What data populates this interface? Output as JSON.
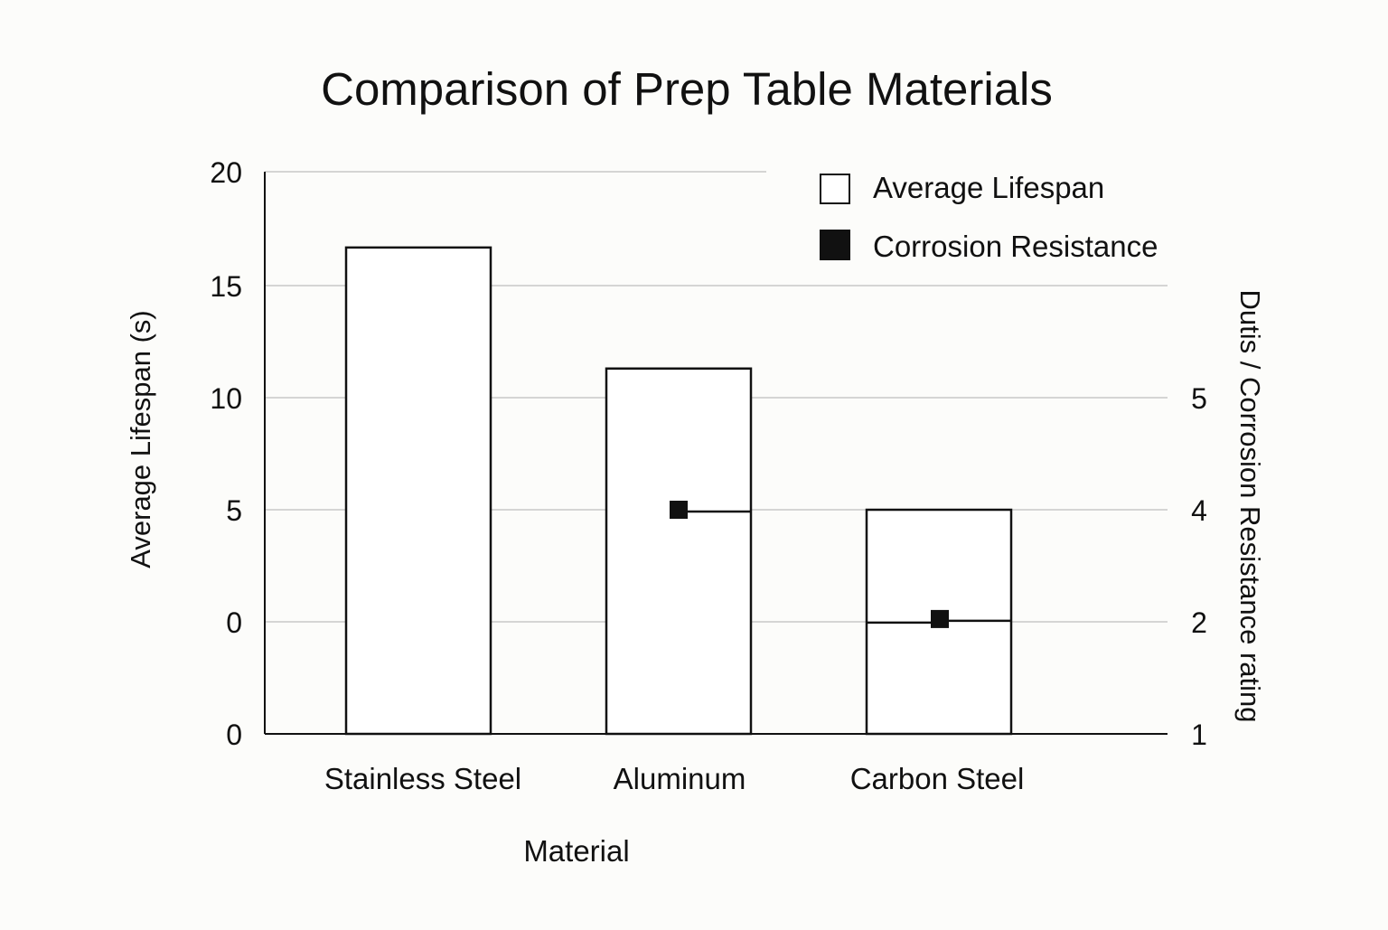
{
  "chart_data": {
    "type": "bar",
    "title": "Comparison of Prep Table Materials",
    "xlabel": "Material",
    "ylabel": "Average Lifespan (s)",
    "y2label": "Dutis / Corrosion Resistance rating",
    "categories": [
      "Stainless Steel",
      "Aluminum",
      "Carbon Steel"
    ],
    "left_axis_ticks": [
      "20",
      "15",
      "10",
      "5",
      "0",
      "0"
    ],
    "right_axis_ticks": [
      "5",
      "4",
      "2",
      "1"
    ],
    "grid": true,
    "legend_position": "top-right",
    "legend": [
      {
        "label": "Average Lifespan",
        "marker": "open-square"
      },
      {
        "label": "Corrosion Resistance",
        "marker": "filled-square"
      }
    ],
    "series": [
      {
        "name": "Average Lifespan",
        "axis": "left",
        "style": "bar",
        "values": [
          16.7,
          11.3,
          5.0
        ]
      },
      {
        "name": "Corrosion Resistance",
        "axis": "right",
        "style": "marker",
        "values": [
          null,
          4.0,
          2.05
        ]
      }
    ],
    "colors": {
      "bar_fill": "#ffffff",
      "bar_stroke": "#111111",
      "marker": "#111111",
      "gridline": "#c8c8c8",
      "axis": "#111111",
      "background": "#fcfcfa"
    }
  }
}
